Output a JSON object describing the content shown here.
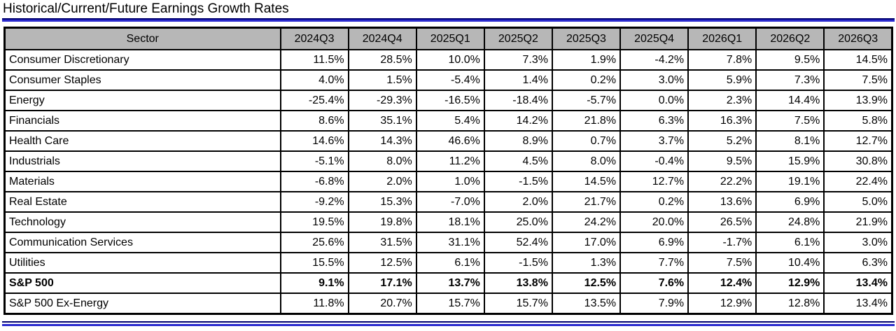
{
  "title": "Historical/Current/Future Earnings Growth Rates",
  "colors": {
    "header_bg": "#b7b7b7",
    "border_black": "#000000",
    "rule_navy": "#00006e",
    "rule_blue": "#2a2ace"
  },
  "chart_data": {
    "type": "table",
    "title": "Historical/Current/Future Earnings Growth Rates",
    "columns": [
      "Sector",
      "2024Q3",
      "2024Q4",
      "2025Q1",
      "2025Q2",
      "2025Q3",
      "2025Q4",
      "2026Q1",
      "2026Q2",
      "2026Q3"
    ],
    "rows": [
      {
        "sector": "Consumer Discretionary",
        "bold": false,
        "values": [
          "11.5%",
          "28.5%",
          "10.0%",
          "7.3%",
          "1.9%",
          "-4.2%",
          "7.8%",
          "9.5%",
          "14.5%"
        ]
      },
      {
        "sector": "Consumer Staples",
        "bold": false,
        "values": [
          "4.0%",
          "1.5%",
          "-5.4%",
          "1.4%",
          "0.2%",
          "3.0%",
          "5.9%",
          "7.3%",
          "7.5%"
        ]
      },
      {
        "sector": "Energy",
        "bold": false,
        "values": [
          "-25.4%",
          "-29.3%",
          "-16.5%",
          "-18.4%",
          "-5.7%",
          "0.0%",
          "2.3%",
          "14.4%",
          "13.9%"
        ]
      },
      {
        "sector": "Financials",
        "bold": false,
        "values": [
          "8.6%",
          "35.1%",
          "5.4%",
          "14.2%",
          "21.8%",
          "6.3%",
          "16.3%",
          "7.5%",
          "5.8%"
        ]
      },
      {
        "sector": "Health Care",
        "bold": false,
        "values": [
          "14.6%",
          "14.3%",
          "46.6%",
          "8.9%",
          "0.7%",
          "3.7%",
          "5.2%",
          "8.1%",
          "12.7%"
        ]
      },
      {
        "sector": "Industrials",
        "bold": false,
        "values": [
          "-5.1%",
          "8.0%",
          "11.2%",
          "4.5%",
          "8.0%",
          "-0.4%",
          "9.5%",
          "15.9%",
          "30.8%"
        ]
      },
      {
        "sector": "Materials",
        "bold": false,
        "values": [
          "-6.8%",
          "2.0%",
          "1.0%",
          "-1.5%",
          "14.5%",
          "12.7%",
          "22.2%",
          "19.1%",
          "22.4%"
        ]
      },
      {
        "sector": "Real Estate",
        "bold": false,
        "values": [
          "-9.2%",
          "15.3%",
          "-7.0%",
          "2.0%",
          "21.7%",
          "0.2%",
          "13.6%",
          "6.9%",
          "5.0%"
        ]
      },
      {
        "sector": "Technology",
        "bold": false,
        "values": [
          "19.5%",
          "19.8%",
          "18.1%",
          "25.0%",
          "24.2%",
          "20.0%",
          "26.5%",
          "24.8%",
          "21.9%"
        ]
      },
      {
        "sector": "Communication Services",
        "bold": false,
        "values": [
          "25.6%",
          "31.5%",
          "31.1%",
          "52.4%",
          "17.0%",
          "6.9%",
          "-1.7%",
          "6.1%",
          "3.0%"
        ]
      },
      {
        "sector": "Utilities",
        "bold": false,
        "values": [
          "15.5%",
          "12.5%",
          "6.1%",
          "-1.5%",
          "1.3%",
          "7.7%",
          "7.5%",
          "10.4%",
          "6.3%"
        ]
      },
      {
        "sector": "S&P 500",
        "bold": true,
        "values": [
          "9.1%",
          "17.1%",
          "13.7%",
          "13.8%",
          "12.5%",
          "7.6%",
          "12.4%",
          "12.9%",
          "13.4%"
        ]
      },
      {
        "sector": "S&P 500 Ex-Energy",
        "bold": false,
        "values": [
          "11.8%",
          "20.7%",
          "15.7%",
          "15.7%",
          "13.5%",
          "7.9%",
          "12.9%",
          "12.8%",
          "13.4%"
        ]
      }
    ]
  }
}
